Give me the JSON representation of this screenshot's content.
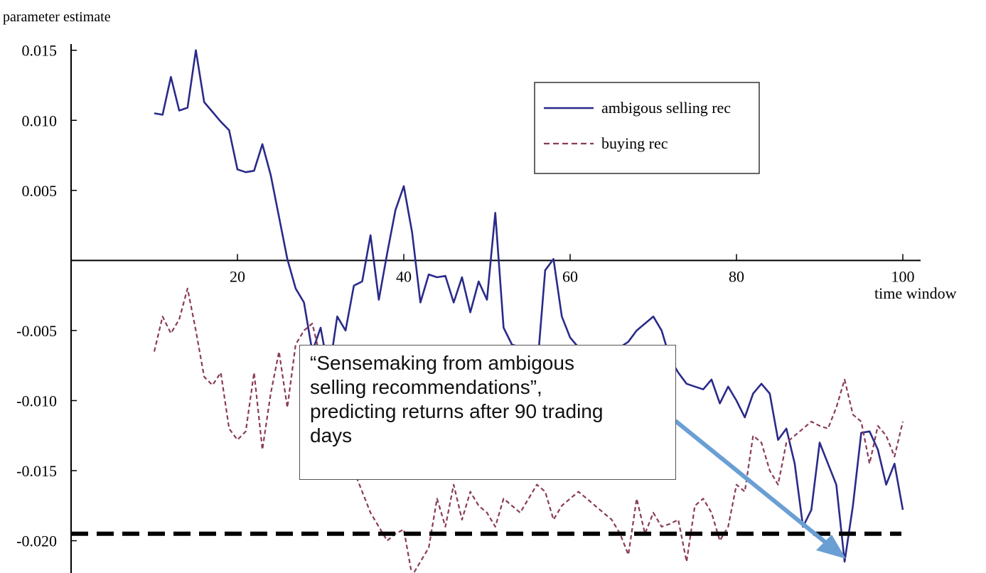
{
  "chart_data": {
    "type": "line",
    "ylabel": "parameter estimate",
    "xlabel": "time window",
    "xlim": [
      0,
      100
    ],
    "ylim": [
      -0.022,
      0.016
    ],
    "x_ticks": [
      20,
      40,
      60,
      80,
      100
    ],
    "y_ticks": [
      0.015,
      0.01,
      0.005,
      -0.005,
      -0.01,
      -0.015,
      -0.02
    ],
    "y_tick_labels": [
      "0.015",
      "0.010",
      "0.005",
      "-0.005",
      "-0.010",
      "-0.015",
      "-0.020"
    ],
    "reference_line": {
      "y": -0.0195,
      "style": "dashed",
      "color": "#000000"
    },
    "legend": {
      "placement": "top-right"
    },
    "series": [
      {
        "name": "ambigous selling rec",
        "color": "#2a2a8a",
        "style": "solid",
        "x": [
          10,
          11,
          12,
          13,
          14,
          15,
          16,
          17,
          18,
          19,
          20,
          21,
          22,
          23,
          24,
          25,
          26,
          27,
          28,
          29,
          30,
          31,
          32,
          33,
          34,
          35,
          36,
          37,
          38,
          39,
          40,
          41,
          42,
          43,
          44,
          45,
          46,
          47,
          48,
          49,
          50,
          51,
          52,
          53,
          54,
          55,
          56,
          57,
          58,
          59,
          60,
          61,
          62,
          63,
          64,
          65,
          66,
          67,
          68,
          69,
          70,
          71,
          72,
          73,
          74,
          75,
          76,
          77,
          78,
          79,
          80,
          81,
          82,
          83,
          84,
          85,
          86,
          87,
          88,
          89,
          90,
          91,
          92,
          93,
          94,
          95,
          96,
          97,
          98,
          99,
          100
        ],
        "values": [
          0.0105,
          0.0104,
          0.0131,
          0.0107,
          0.0109,
          0.015,
          0.0113,
          0.0106,
          0.0099,
          0.0093,
          0.0065,
          0.0063,
          0.0064,
          0.0083,
          0.0061,
          0.0031,
          0.0001,
          -0.002,
          -0.003,
          -0.0065,
          -0.0048,
          -0.008,
          -0.004,
          -0.005,
          -0.0018,
          -0.0015,
          0.0018,
          -0.0028,
          0.0005,
          0.0036,
          0.0053,
          0.002,
          -0.003,
          -0.001,
          -0.0012,
          -0.0011,
          -0.003,
          -0.0012,
          -0.0037,
          -0.0015,
          -0.0028,
          0.0034,
          -0.0048,
          -0.006,
          -0.0062,
          -0.0065,
          -0.008,
          -0.0007,
          0.0001,
          -0.004,
          -0.0055,
          -0.0062,
          -0.0066,
          -0.0068,
          -0.0068,
          -0.0065,
          -0.0062,
          -0.0058,
          -0.005,
          -0.0045,
          -0.004,
          -0.005,
          -0.007,
          -0.008,
          -0.0088,
          -0.009,
          -0.0092,
          -0.0085,
          -0.0102,
          -0.009,
          -0.01,
          -0.0112,
          -0.0095,
          -0.0088,
          -0.0095,
          -0.0128,
          -0.012,
          -0.0145,
          -0.019,
          -0.0178,
          -0.013,
          -0.0145,
          -0.016,
          -0.0215,
          -0.0175,
          -0.0123,
          -0.0122,
          -0.0135,
          -0.016,
          -0.0145,
          -0.0178
        ]
      },
      {
        "name": "buying rec",
        "color": "#8a3a5a",
        "style": "dashed",
        "x": [
          10,
          11,
          12,
          13,
          14,
          15,
          16,
          17,
          18,
          19,
          20,
          21,
          22,
          23,
          24,
          25,
          26,
          27,
          28,
          29,
          30,
          31,
          32,
          33,
          34,
          35,
          36,
          37,
          38,
          39,
          40,
          41,
          42,
          43,
          44,
          45,
          46,
          47,
          48,
          49,
          50,
          51,
          52,
          53,
          54,
          55,
          56,
          57,
          58,
          59,
          60,
          61,
          62,
          63,
          64,
          65,
          66,
          67,
          68,
          69,
          70,
          71,
          72,
          73,
          74,
          75,
          76,
          77,
          78,
          79,
          80,
          81,
          82,
          83,
          84,
          85,
          86,
          87,
          88,
          89,
          90,
          91,
          92,
          93,
          94,
          95,
          96,
          97,
          98,
          99,
          100
        ],
        "values": [
          -0.0065,
          -0.004,
          -0.0052,
          -0.0042,
          -0.002,
          -0.005,
          -0.0083,
          -0.0089,
          -0.008,
          -0.012,
          -0.0128,
          -0.0122,
          -0.008,
          -0.0135,
          -0.0095,
          -0.0065,
          -0.0105,
          -0.006,
          -0.005,
          -0.0045,
          -0.007,
          -0.009,
          -0.011,
          -0.013,
          -0.015,
          -0.0165,
          -0.018,
          -0.019,
          -0.02,
          -0.0195,
          -0.0192,
          -0.0225,
          -0.0215,
          -0.0205,
          -0.017,
          -0.019,
          -0.016,
          -0.0185,
          -0.0165,
          -0.0175,
          -0.018,
          -0.019,
          -0.017,
          -0.0175,
          -0.018,
          -0.017,
          -0.016,
          -0.0165,
          -0.0185,
          -0.0175,
          -0.017,
          -0.0165,
          -0.017,
          -0.0175,
          -0.018,
          -0.0185,
          -0.0195,
          -0.021,
          -0.017,
          -0.0195,
          -0.018,
          -0.019,
          -0.0188,
          -0.0185,
          -0.0215,
          -0.0175,
          -0.017,
          -0.018,
          -0.02,
          -0.019,
          -0.016,
          -0.0165,
          -0.0125,
          -0.013,
          -0.015,
          -0.016,
          -0.013,
          -0.0125,
          -0.012,
          -0.0115,
          -0.0118,
          -0.012,
          -0.0105,
          -0.0085,
          -0.011,
          -0.0115,
          -0.0145,
          -0.0118,
          -0.0125,
          -0.014,
          -0.0115
        ]
      }
    ]
  },
  "annotation": {
    "text": "“Sensemaking from ambigous\nselling recommendations”,\npredicting returns after 90 trading\ndays",
    "arrow_color": "#6a9fd4"
  }
}
